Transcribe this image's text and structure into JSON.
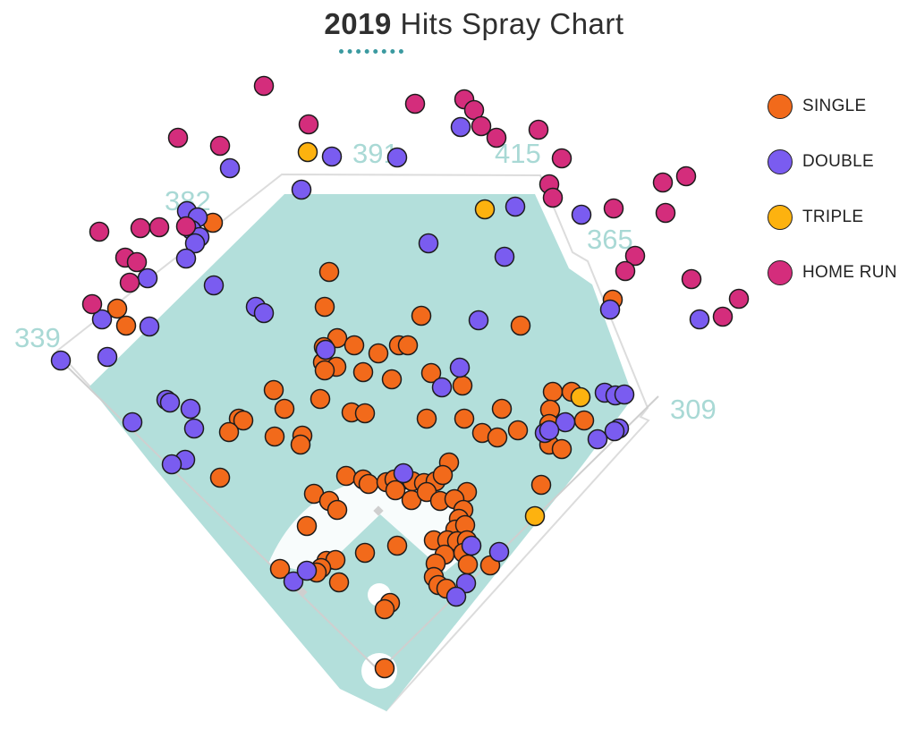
{
  "title": {
    "year": "2019",
    "text": "Hits Spray Chart"
  },
  "colors": {
    "SINGLE": "#f26a1b",
    "DOUBLE": "#7a5cf0",
    "TRIPLE": "#fdb20f",
    "HOME RUN": "#d42d7c",
    "field": "#b3dfdb",
    "dim_text": "#a9d9d5"
  },
  "legend": [
    {
      "label": "SINGLE",
      "color": "#f26a1b"
    },
    {
      "label": "DOUBLE",
      "color": "#7a5cf0"
    },
    {
      "label": "TRIPLE",
      "color": "#fdb20f"
    },
    {
      "label": "HOME RUN",
      "color": "#d42d7c"
    }
  ],
  "fence_distances": [
    "339",
    "382",
    "391",
    "415",
    "365",
    "309"
  ],
  "chart_data": {
    "type": "scatter",
    "title": "2019 Hits Spray Chart",
    "series": [
      {
        "name": "SINGLE",
        "points": [
          [
            368,
            304
          ],
          [
            363,
            343
          ],
          [
            471,
            353
          ],
          [
            582,
            364
          ],
          [
            377,
            378
          ],
          [
            362,
            388
          ],
          [
            396,
            386
          ],
          [
            446,
            386
          ],
          [
            456,
            386
          ],
          [
            423,
            395
          ],
          [
            361,
            405
          ],
          [
            376,
            410
          ],
          [
            363,
            414
          ],
          [
            406,
            416
          ],
          [
            482,
            417
          ],
          [
            438,
            424
          ],
          [
            517,
            431
          ],
          [
            306,
            436
          ],
          [
            358,
            446
          ],
          [
            618,
            438
          ],
          [
            639,
            438
          ],
          [
            318,
            457
          ],
          [
            393,
            461
          ],
          [
            408,
            462
          ],
          [
            561,
            457
          ],
          [
            615,
            458
          ],
          [
            267,
            468
          ],
          [
            272,
            470
          ],
          [
            477,
            468
          ],
          [
            519,
            468
          ],
          [
            653,
            470
          ],
          [
            256,
            483
          ],
          [
            307,
            488
          ],
          [
            338,
            487
          ],
          [
            336,
            497
          ],
          [
            539,
            484
          ],
          [
            579,
            481
          ],
          [
            556,
            489
          ],
          [
            614,
            497
          ],
          [
            628,
            502
          ],
          [
            502,
            517
          ],
          [
            246,
            534
          ],
          [
            387,
            532
          ],
          [
            406,
            536
          ],
          [
            412,
            541
          ],
          [
            432,
            539
          ],
          [
            441,
            536
          ],
          [
            455,
            536
          ],
          [
            461,
            538
          ],
          [
            474,
            540
          ],
          [
            487,
            538
          ],
          [
            495,
            531
          ],
          [
            351,
            552
          ],
          [
            368,
            560
          ],
          [
            377,
            570
          ],
          [
            442,
            548
          ],
          [
            460,
            559
          ],
          [
            477,
            550
          ],
          [
            492,
            560
          ],
          [
            522,
            550
          ],
          [
            508,
            558
          ],
          [
            605,
            542
          ],
          [
            518,
            570
          ],
          [
            513,
            580
          ],
          [
            343,
            588
          ],
          [
            509,
            592
          ],
          [
            520,
            587
          ],
          [
            485,
            604
          ],
          [
            500,
            604
          ],
          [
            511,
            605
          ],
          [
            522,
            604
          ],
          [
            444,
            610
          ],
          [
            408,
            618
          ],
          [
            497,
            620
          ],
          [
            518,
            618
          ],
          [
            365,
            627
          ],
          [
            375,
            626
          ],
          [
            359,
            635
          ],
          [
            313,
            636
          ],
          [
            354,
            640
          ],
          [
            523,
            631
          ],
          [
            548,
            632
          ],
          [
            487,
            630
          ],
          [
            485,
            645
          ],
          [
            490,
            654
          ],
          [
            499,
            658
          ],
          [
            379,
            651
          ],
          [
            436,
            674
          ],
          [
            430,
            681
          ],
          [
            430,
            747
          ],
          [
            685,
            335
          ],
          [
            131,
            345
          ],
          [
            141,
            364
          ],
          [
            238,
            249
          ],
          [
            614,
            474
          ]
        ]
      },
      {
        "name": "DOUBLE",
        "points": [
          [
            371,
            175
          ],
          [
            444,
            176
          ],
          [
            515,
            142
          ],
          [
            257,
            188
          ],
          [
            337,
            212
          ],
          [
            576,
            231
          ],
          [
            209,
            236
          ],
          [
            221,
            243
          ],
          [
            214,
            257
          ],
          [
            223,
            265
          ],
          [
            218,
            272
          ],
          [
            208,
            289
          ],
          [
            479,
            272
          ],
          [
            564,
            287
          ],
          [
            165,
            311
          ],
          [
            239,
            319
          ],
          [
            286,
            343
          ],
          [
            295,
            350
          ],
          [
            650,
            240
          ],
          [
            114,
            357
          ],
          [
            167,
            365
          ],
          [
            535,
            358
          ],
          [
            682,
            346
          ],
          [
            782,
            357
          ],
          [
            68,
            403
          ],
          [
            120,
            399
          ],
          [
            364,
            391
          ],
          [
            514,
            411
          ],
          [
            494,
            433
          ],
          [
            186,
            447
          ],
          [
            190,
            450
          ],
          [
            213,
            457
          ],
          [
            676,
            439
          ],
          [
            688,
            442
          ],
          [
            698,
            441
          ],
          [
            148,
            472
          ],
          [
            217,
            479
          ],
          [
            632,
            472
          ],
          [
            609,
            484
          ],
          [
            614,
            481
          ],
          [
            692,
            479
          ],
          [
            687,
            482
          ],
          [
            668,
            491
          ],
          [
            207,
            514
          ],
          [
            192,
            519
          ],
          [
            451,
            529
          ],
          [
            527,
            610
          ],
          [
            558,
            617
          ],
          [
            328,
            650
          ],
          [
            343,
            638
          ],
          [
            521,
            652
          ],
          [
            510,
            667
          ]
        ]
      },
      {
        "name": "TRIPLE",
        "points": [
          [
            344,
            170
          ],
          [
            542,
            234
          ],
          [
            649,
            444
          ],
          [
            598,
            577
          ]
        ]
      },
      {
        "name": "HOME RUN",
        "points": [
          [
            295,
            96
          ],
          [
            345,
            139
          ],
          [
            464,
            116
          ],
          [
            519,
            111
          ],
          [
            530,
            123
          ],
          [
            538,
            141
          ],
          [
            555,
            154
          ],
          [
            602,
            145
          ],
          [
            628,
            177
          ],
          [
            199,
            154
          ],
          [
            246,
            163
          ],
          [
            614,
            206
          ],
          [
            618,
            221
          ],
          [
            111,
            259
          ],
          [
            157,
            255
          ],
          [
            178,
            254
          ],
          [
            208,
            253
          ],
          [
            140,
            288
          ],
          [
            153,
            293
          ],
          [
            145,
            316
          ],
          [
            103,
            340
          ],
          [
            686,
            233
          ],
          [
            741,
            204
          ],
          [
            767,
            197
          ],
          [
            744,
            238
          ],
          [
            710,
            286
          ],
          [
            699,
            303
          ],
          [
            773,
            312
          ],
          [
            808,
            354
          ],
          [
            826,
            334
          ]
        ]
      }
    ]
  }
}
